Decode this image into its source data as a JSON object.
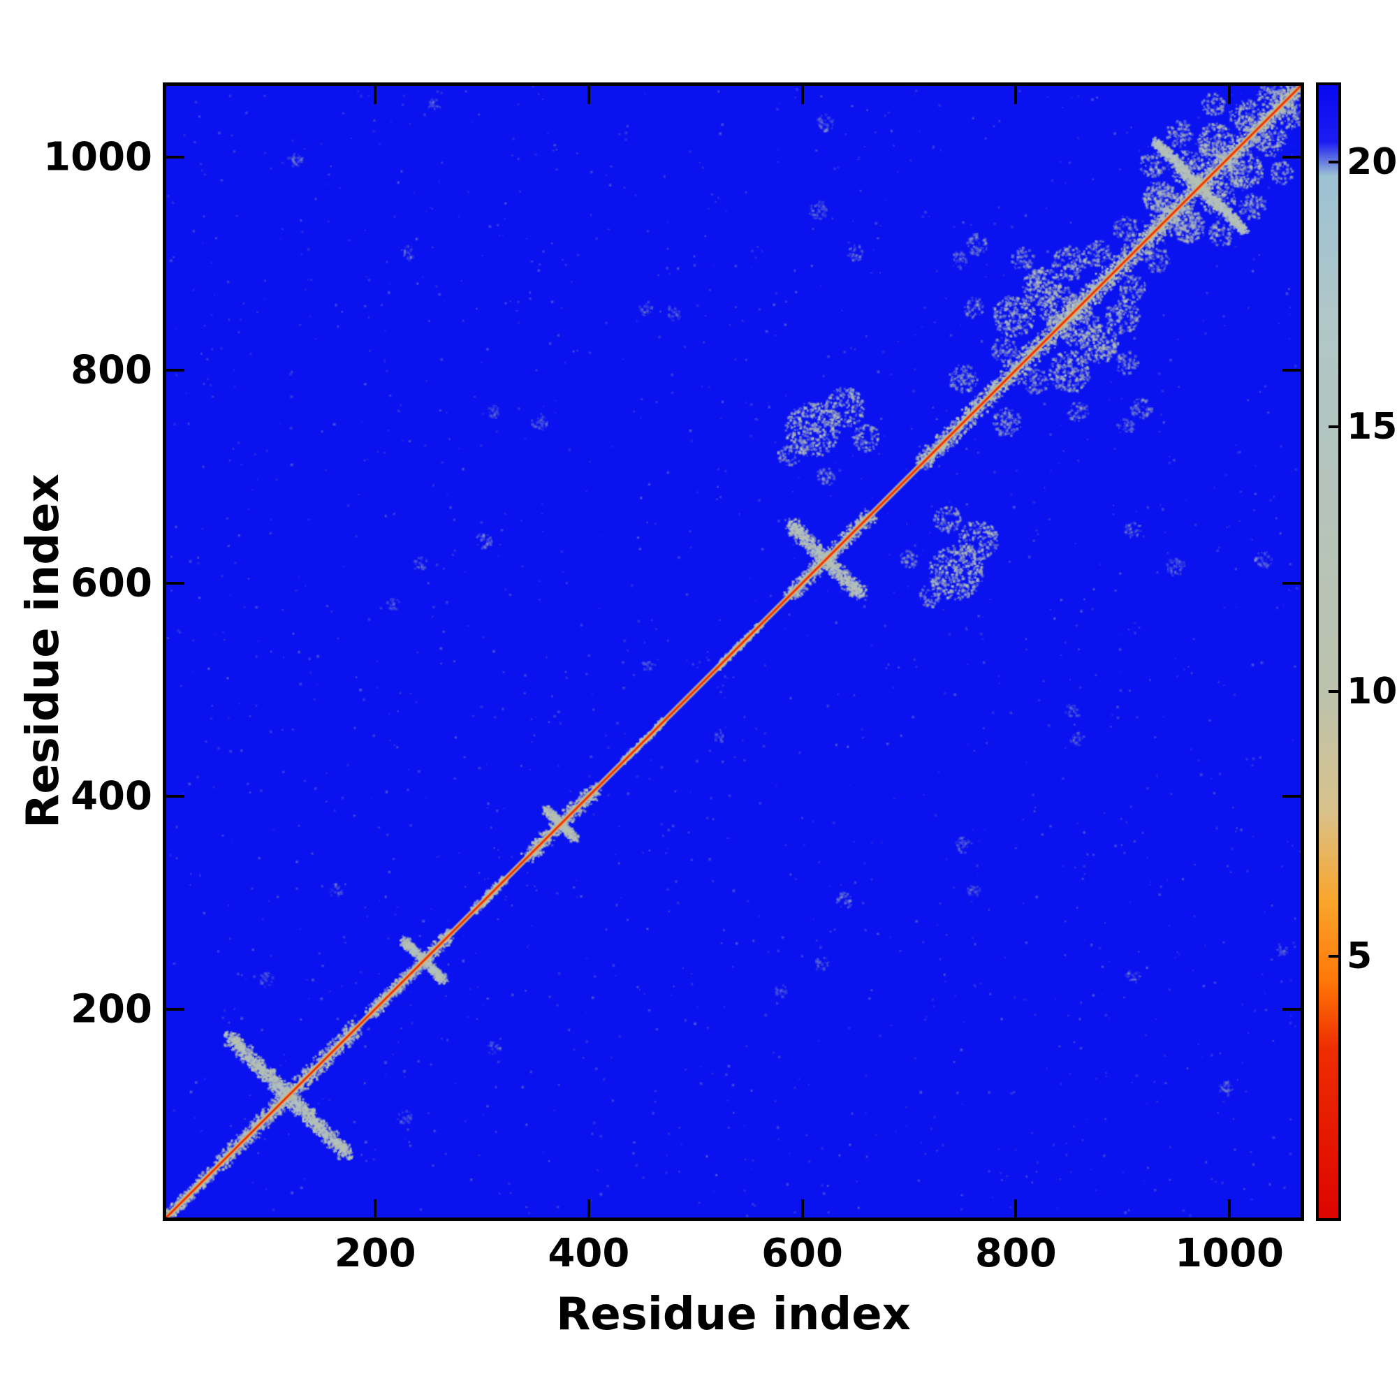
{
  "figure": {
    "background": "#ffffff",
    "frame_color": "#000000"
  },
  "chart_data": {
    "type": "heatmap",
    "title": "",
    "xlabel": "Residue index",
    "ylabel": "Residue index",
    "n_residues": 1070,
    "x_range": [
      1,
      1070
    ],
    "y_range": [
      1,
      1070
    ],
    "x_ticks": [
      200,
      400,
      600,
      800,
      1000
    ],
    "y_ticks": [
      200,
      400,
      600,
      800,
      1000
    ],
    "grid": false,
    "legend": "colorbar-right",
    "colorbar": {
      "range": [
        0,
        21.5
      ],
      "ticks": [
        5,
        10,
        15,
        20
      ],
      "stops": [
        {
          "pos": 0.0,
          "color": "#dd0500"
        },
        {
          "pos": 0.15,
          "color": "#ee2d00"
        },
        {
          "pos": 0.21,
          "color": "#ff7808"
        },
        {
          "pos": 0.28,
          "color": "#f9a52c"
        },
        {
          "pos": 0.36,
          "color": "#d8c28c"
        },
        {
          "pos": 0.46,
          "color": "#bcc2ac"
        },
        {
          "pos": 0.62,
          "color": "#b5c4ba"
        },
        {
          "pos": 0.8,
          "color": "#b0c6c8"
        },
        {
          "pos": 0.92,
          "color": "#9cc2d4"
        },
        {
          "pos": 0.95,
          "color": "#1c1cf2"
        },
        {
          "pos": 1.0,
          "color": "#0808ef"
        }
      ]
    },
    "colors": {
      "field": "#0a12f0",
      "cluster": "#b8c0ac",
      "cluster2": "#b2c2c4",
      "diag_halo": "#b8c0a4",
      "diag_orange": "#ff9518",
      "diag_core": "#ea1208"
    },
    "diagonal": {
      "value": 0,
      "core_width": 1.4,
      "orange_width": 2.8,
      "halo_width": 5.2
    },
    "diag_segments": [
      [
        2,
        45,
        9
      ],
      [
        50,
        180,
        13
      ],
      [
        192,
        268,
        10
      ],
      [
        290,
        320,
        7
      ],
      [
        340,
        405,
        12
      ],
      [
        430,
        470,
        5
      ],
      [
        520,
        560,
        5
      ],
      [
        588,
        665,
        12
      ],
      [
        713,
        795,
        14
      ],
      [
        795,
        935,
        17
      ],
      [
        930,
        1070,
        15
      ]
    ],
    "crosses": [
      [
        115,
        56,
        13
      ],
      [
        243,
        19,
        8
      ],
      [
        372,
        14,
        7
      ],
      [
        622,
        33,
        12
      ],
      [
        975,
        42,
        9
      ]
    ],
    "blobs": [
      [
        610,
        745,
        26,
        0.85
      ],
      [
        640,
        766,
        19,
        0.8
      ],
      [
        660,
        737,
        13,
        0.7
      ],
      [
        588,
        721,
        11,
        0.6
      ],
      [
        622,
        700,
        9,
        0.5
      ],
      [
        752,
        793,
        14,
        0.6
      ],
      [
        800,
        852,
        20,
        0.85
      ],
      [
        826,
        880,
        18,
        0.85
      ],
      [
        852,
        902,
        16,
        0.8
      ],
      [
        878,
        912,
        13,
        0.7
      ],
      [
        808,
        906,
        11,
        0.6
      ],
      [
        762,
        860,
        10,
        0.5
      ],
      [
        790,
        820,
        12,
        0.6
      ],
      [
        842,
        862,
        20,
        0.85
      ],
      [
        920,
        765,
        10,
        0.5
      ],
      [
        938,
        962,
        17,
        0.85
      ],
      [
        962,
        992,
        17,
        0.85
      ],
      [
        990,
        1018,
        17,
        0.85
      ],
      [
        1018,
        1042,
        15,
        0.85
      ],
      [
        1042,
        1062,
        13,
        0.8
      ],
      [
        955,
        1025,
        13,
        0.7
      ],
      [
        988,
        1052,
        11,
        0.7
      ],
      [
        930,
        995,
        12,
        0.7
      ],
      [
        1005,
        985,
        12,
        0.7
      ],
      [
        935,
        905,
        12,
        0.6
      ],
      [
        965,
        935,
        14,
        0.7
      ],
      [
        122,
        1000,
        7,
        0.35
      ],
      [
        253,
        1052,
        6,
        0.3
      ],
      [
        300,
        640,
        8,
        0.4
      ],
      [
        240,
        618,
        7,
        0.35
      ],
      [
        352,
        752,
        8,
        0.35
      ],
      [
        214,
        580,
        6,
        0.3
      ],
      [
        615,
        952,
        9,
        0.4
      ],
      [
        650,
        912,
        8,
        0.4
      ],
      [
        905,
        748,
        8,
        0.4
      ],
      [
        1035,
        622,
        8,
        0.35
      ],
      [
        912,
        228,
        7,
        0.35
      ],
      [
        860,
        452,
        7,
        0.3
      ],
      [
        762,
        308,
        7,
        0.3
      ],
      [
        455,
        522,
        6,
        0.3
      ],
      [
        479,
        855,
        7,
        0.3
      ],
      [
        160,
        310,
        7,
        0.3
      ],
      [
        95,
        225,
        7,
        0.3
      ]
    ],
    "speckles": {
      "count": 850,
      "alpha": 0.32,
      "seed": 20240917
    }
  }
}
